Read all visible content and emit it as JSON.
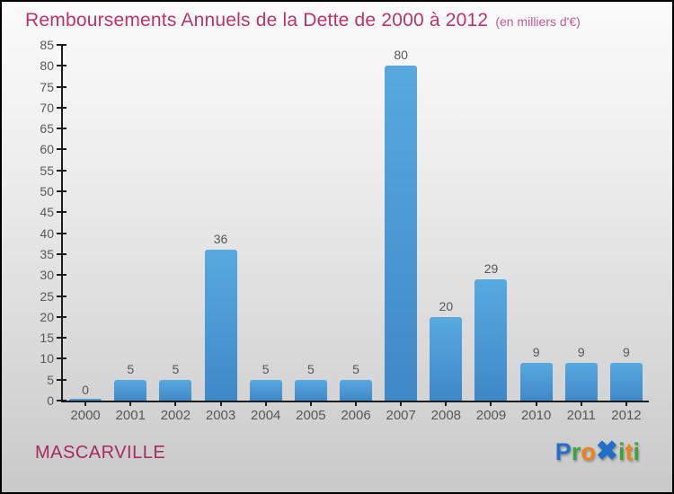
{
  "page": {
    "title": "Remboursements Annuels de la Dette de 2000 à 2012",
    "subtitle": "(en milliers d'€)",
    "footer_name": "MASCARVILLE"
  },
  "colors": {
    "title": "#bd3365",
    "subtitle": "#c75a8e",
    "footer": "#a62c5c",
    "axis": "#1c1c1c",
    "labels": "#575757",
    "bar_top": "#58a9e0",
    "bar_bottom": "#3f88c7"
  },
  "logo": {
    "name": "Proxiti",
    "letters": [
      {
        "char": "P",
        "name": "p",
        "color": "#2170c8",
        "big": false
      },
      {
        "char": "r",
        "name": "r",
        "color": "#3fa23f",
        "big": false
      },
      {
        "char": "o",
        "name": "o",
        "color": "#f28118",
        "big": false
      },
      {
        "char": "✖",
        "name": "x",
        "color": "#2170c8",
        "big": true
      },
      {
        "char": "i",
        "name": "i1",
        "color": "#3fa23f",
        "big": false
      },
      {
        "char": "t",
        "name": "t",
        "color": "#f28118",
        "big": false
      },
      {
        "char": "i",
        "name": "i2",
        "color": "#3fa23f",
        "big": false
      }
    ]
  },
  "chart_data": {
    "type": "bar",
    "title": "Remboursements Annuels de la Dette de 2000 à 2012",
    "subtitle": "(en milliers d'€)",
    "categories": [
      "2000",
      "2001",
      "2002",
      "2003",
      "2004",
      "2005",
      "2006",
      "2007",
      "2008",
      "2009",
      "2010",
      "2011",
      "2012"
    ],
    "values": [
      0,
      5,
      5,
      36,
      5,
      5,
      5,
      80,
      20,
      29,
      9,
      9,
      9
    ],
    "xlabel": "",
    "ylabel": "",
    "ylim": [
      0,
      85
    ],
    "ytick_step": 5,
    "grid": false,
    "legend": false,
    "value_labels": true
  }
}
